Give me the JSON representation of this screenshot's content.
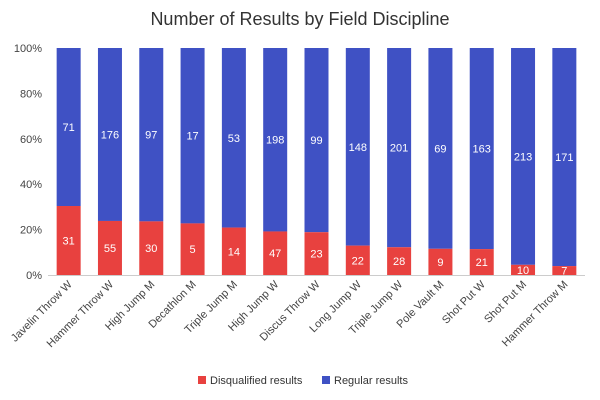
{
  "chart_data": {
    "type": "bar",
    "stacked": true,
    "normalized": true,
    "title": "Number of Results by Field Discipline",
    "xlabel": "",
    "ylabel": "",
    "ylim": [
      0,
      100
    ],
    "y_ticks": [
      "0%",
      "20%",
      "40%",
      "60%",
      "80%",
      "100%"
    ],
    "legend_position": "bottom",
    "categories": [
      "Javelin Throw W",
      "Hammer Throw W",
      "High Jump M",
      "Decathlon M",
      "Triple Jump M",
      "High Jump W",
      "Discus Throw W",
      "Long Jump W",
      "Triple Jump W",
      "Pole Vault M",
      "Shot Put W",
      "Shot Put M",
      "Hammer Throw M"
    ],
    "series": [
      {
        "name": "Disqualified results",
        "color": "#e8413f",
        "values": [
          31,
          55,
          30,
          5,
          14,
          47,
          23,
          22,
          28,
          9,
          21,
          10,
          7
        ]
      },
      {
        "name": "Regular results",
        "color": "#3f51c4",
        "values": [
          71,
          176,
          97,
          17,
          53,
          198,
          99,
          148,
          201,
          69,
          163,
          213,
          171
        ]
      }
    ]
  }
}
